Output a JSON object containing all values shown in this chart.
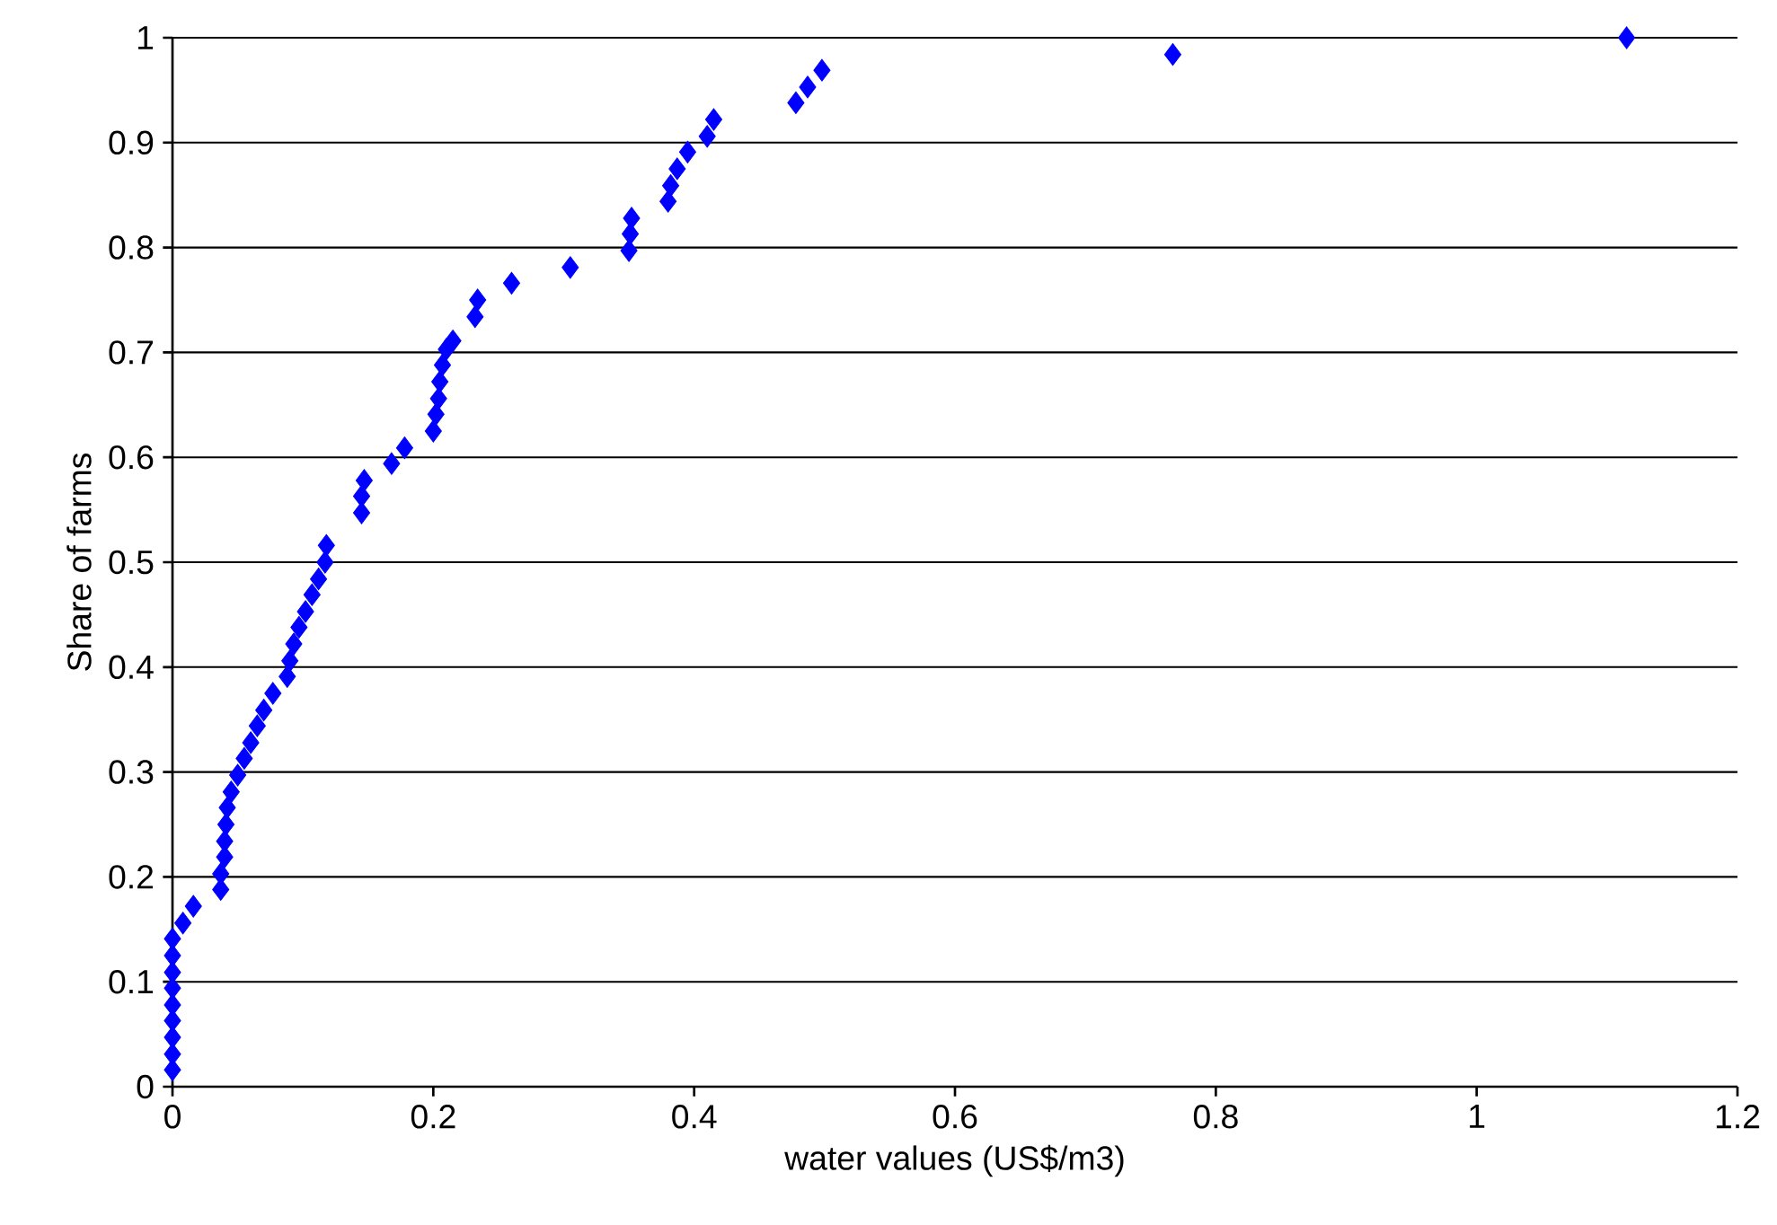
{
  "chart_data": {
    "type": "scatter",
    "xlabel": "water values (US$/m3)",
    "ylabel": "Share of farms",
    "x": [
      0,
      0,
      0,
      0,
      0,
      0,
      0,
      0,
      0,
      0.008,
      0.016,
      0.037,
      0.037,
      0.04,
      0.04,
      0.041,
      0.042,
      0.045,
      0.05,
      0.055,
      0.06,
      0.065,
      0.07,
      0.077,
      0.088,
      0.09,
      0.093,
      0.097,
      0.102,
      0.107,
      0.112,
      0.117,
      0.118,
      0.145,
      0.145,
      0.147,
      0.168,
      0.178,
      0.2,
      0.202,
      0.204,
      0.205,
      0.207,
      0.21,
      0.215,
      0.232,
      0.234,
      0.26,
      0.305,
      0.35,
      0.351,
      0.352,
      0.38,
      0.382,
      0.387,
      0.395,
      0.41,
      0.415,
      0.478,
      0.487,
      0.498,
      0.767,
      1.115
    ],
    "values": [
      0.016,
      0.031,
      0.047,
      0.063,
      0.078,
      0.094,
      0.109,
      0.125,
      0.141,
      0.156,
      0.172,
      0.188,
      0.203,
      0.219,
      0.234,
      0.25,
      0.266,
      0.281,
      0.297,
      0.313,
      0.328,
      0.344,
      0.359,
      0.375,
      0.391,
      0.406,
      0.422,
      0.438,
      0.453,
      0.469,
      0.484,
      0.5,
      0.516,
      0.547,
      0.563,
      0.578,
      0.594,
      0.609,
      0.625,
      0.641,
      0.656,
      0.672,
      0.688,
      0.703,
      0.711,
      0.734,
      0.75,
      0.766,
      0.781,
      0.797,
      0.813,
      0.828,
      0.844,
      0.859,
      0.875,
      0.891,
      0.906,
      0.922,
      0.938,
      0.953,
      0.969,
      0.984,
      1
    ],
    "color": "#0000ff",
    "marker": "diamond",
    "grid": "y",
    "xlim": [
      0,
      1.2
    ],
    "xticks": [
      0,
      0.2,
      0.4,
      0.6,
      0.8,
      1,
      1.2
    ],
    "ylim": [
      0,
      1
    ],
    "yticks": [
      0,
      0.1,
      0.2,
      0.3,
      0.4,
      0.5,
      0.6,
      0.7,
      0.8,
      0.9,
      1
    ]
  }
}
